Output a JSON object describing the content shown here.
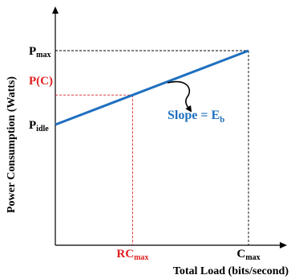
{
  "chart_data": {
    "type": "line",
    "xlabel": "Total Load (bits/second)",
    "ylabel": "Power Consumption (Watts)",
    "x_ticks": [
      {
        "base": "RC",
        "sub": "max",
        "x": 0.4,
        "color": "#e02020"
      },
      {
        "base": "C",
        "sub": "max",
        "x": 1.0,
        "color": "#000000"
      }
    ],
    "y_ticks": [
      {
        "base": "P",
        "sub": "max",
        "y": 1.0,
        "color": "#000000"
      },
      {
        "base": "P(C)",
        "sub": "",
        "y": 0.8,
        "color": "#e02020"
      },
      {
        "base": "P",
        "sub": "idle",
        "y": 0.5,
        "color": "#000000"
      }
    ],
    "series": [
      {
        "x": [
          0,
          1.0
        ],
        "y": [
          0.5,
          1.0
        ],
        "color": "#1f6fbf"
      }
    ],
    "annotation": {
      "text": "Slope = E",
      "sub": "b",
      "color": "#1f6fbf"
    },
    "xlim": [
      0,
      1.17
    ],
    "ylim": [
      -0.48,
      1.0
    ],
    "grid": false
  }
}
